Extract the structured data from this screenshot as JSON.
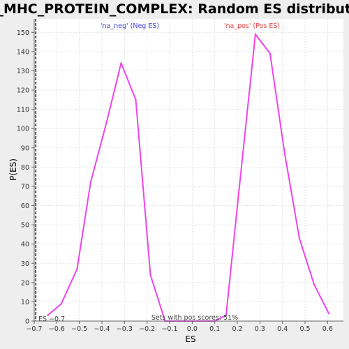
{
  "chart_data": {
    "type": "line",
    "title": "GO_MHC_PROTEIN_COMPLEX: Random ES distribution",
    "xlabel": "ES",
    "ylabel": "P(ES)",
    "xlim": [
      -0.7,
      0.67
    ],
    "ylim": [
      0,
      157
    ],
    "x_ticks": [
      -0.7,
      -0.6,
      -0.5,
      -0.4,
      -0.3,
      -0.2,
      -0.1,
      0.0,
      0.1,
      0.2,
      0.3,
      0.4,
      0.5,
      0.6
    ],
    "x_tick_labels": [
      "−0.7",
      "−0.6",
      "−0.5",
      "−0.4",
      "−0.3",
      "−0.2",
      "−0.1",
      "0.0",
      "0.1",
      "0.2",
      "0.3",
      "0.4",
      "0.5",
      "0.6"
    ],
    "y_ticks": [
      0,
      10,
      20,
      30,
      40,
      50,
      60,
      70,
      80,
      90,
      100,
      110,
      120,
      130,
      140,
      150
    ],
    "grid": true,
    "series": [
      {
        "name": "'na_neg' (Neg ES)",
        "color": "#ee44ee",
        "x": [
          -0.64,
          -0.58,
          -0.51,
          -0.45,
          -0.38,
          -0.315,
          -0.25,
          -0.185,
          -0.12
        ],
        "y": [
          3,
          9,
          27,
          72,
          103,
          134,
          115,
          24,
          0
        ]
      },
      {
        "name": "",
        "color": "#ee44ee",
        "x": [
          -0.12,
          -0.06,
          0.0,
          0.06,
          0.1
        ],
        "y": [
          0,
          0,
          0,
          0,
          0
        ]
      },
      {
        "name": "'na_pos' (Pos ES)",
        "color": "#ee44ee",
        "x": [
          0.1,
          0.15,
          0.21,
          0.28,
          0.345,
          0.41,
          0.475,
          0.54,
          0.605
        ],
        "y": [
          0,
          3,
          71,
          149,
          139,
          87,
          43,
          19,
          4
        ]
      }
    ],
    "legend": [
      {
        "label": "'na_neg' (Neg ES)",
        "color": "#4444dd",
        "position": "top-left"
      },
      {
        "label": "'na_pos' (Pos ES)",
        "color": "#dd4444",
        "position": "top-right"
      }
    ],
    "observed_es": {
      "value": -0.693,
      "label": "ES −0.7"
    },
    "annotation": "Sets with pos scores: 51%"
  }
}
